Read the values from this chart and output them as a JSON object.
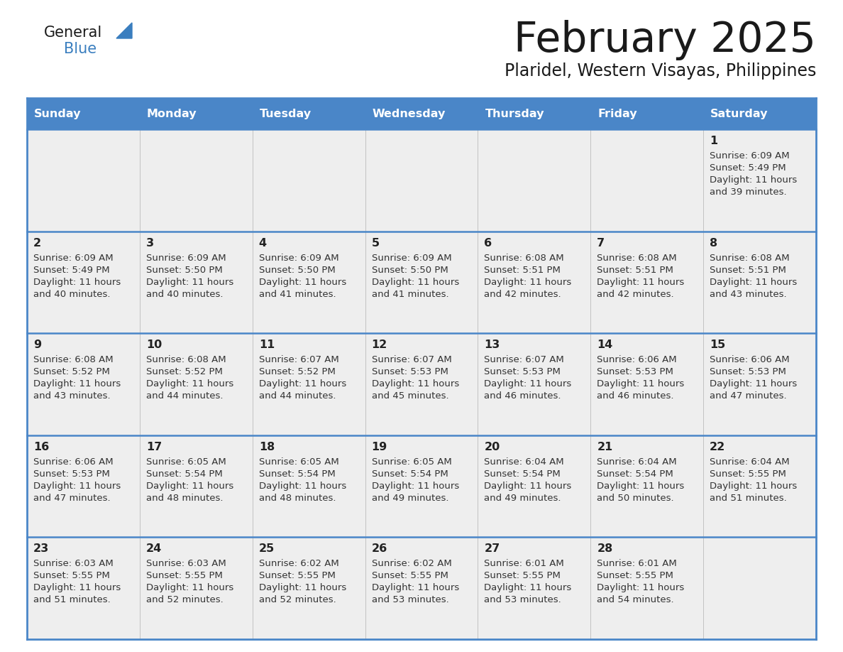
{
  "title": "February 2025",
  "subtitle": "Plaridel, Western Visayas, Philippines",
  "days_of_week": [
    "Sunday",
    "Monday",
    "Tuesday",
    "Wednesday",
    "Thursday",
    "Friday",
    "Saturday"
  ],
  "header_bg": "#4a86c8",
  "header_text": "#ffffff",
  "cell_bg": "#eeeeee",
  "border_color": "#4a86c8",
  "day_number_color": "#222222",
  "text_color": "#333333",
  "title_color": "#1a1a1a",
  "logo_general_color": "#1a1a1a",
  "logo_blue_color": "#3a7ebf",
  "calendar_data": [
    {
      "day": 1,
      "row": 0,
      "col": 6,
      "sunrise": "6:09 AM",
      "sunset": "5:49 PM",
      "daylight_mins": "39"
    },
    {
      "day": 2,
      "row": 1,
      "col": 0,
      "sunrise": "6:09 AM",
      "sunset": "5:49 PM",
      "daylight_mins": "40"
    },
    {
      "day": 3,
      "row": 1,
      "col": 1,
      "sunrise": "6:09 AM",
      "sunset": "5:50 PM",
      "daylight_mins": "40"
    },
    {
      "day": 4,
      "row": 1,
      "col": 2,
      "sunrise": "6:09 AM",
      "sunset": "5:50 PM",
      "daylight_mins": "41"
    },
    {
      "day": 5,
      "row": 1,
      "col": 3,
      "sunrise": "6:09 AM",
      "sunset": "5:50 PM",
      "daylight_mins": "41"
    },
    {
      "day": 6,
      "row": 1,
      "col": 4,
      "sunrise": "6:08 AM",
      "sunset": "5:51 PM",
      "daylight_mins": "42"
    },
    {
      "day": 7,
      "row": 1,
      "col": 5,
      "sunrise": "6:08 AM",
      "sunset": "5:51 PM",
      "daylight_mins": "42"
    },
    {
      "day": 8,
      "row": 1,
      "col": 6,
      "sunrise": "6:08 AM",
      "sunset": "5:51 PM",
      "daylight_mins": "43"
    },
    {
      "day": 9,
      "row": 2,
      "col": 0,
      "sunrise": "6:08 AM",
      "sunset": "5:52 PM",
      "daylight_mins": "43"
    },
    {
      "day": 10,
      "row": 2,
      "col": 1,
      "sunrise": "6:08 AM",
      "sunset": "5:52 PM",
      "daylight_mins": "44"
    },
    {
      "day": 11,
      "row": 2,
      "col": 2,
      "sunrise": "6:07 AM",
      "sunset": "5:52 PM",
      "daylight_mins": "44"
    },
    {
      "day": 12,
      "row": 2,
      "col": 3,
      "sunrise": "6:07 AM",
      "sunset": "5:53 PM",
      "daylight_mins": "45"
    },
    {
      "day": 13,
      "row": 2,
      "col": 4,
      "sunrise": "6:07 AM",
      "sunset": "5:53 PM",
      "daylight_mins": "46"
    },
    {
      "day": 14,
      "row": 2,
      "col": 5,
      "sunrise": "6:06 AM",
      "sunset": "5:53 PM",
      "daylight_mins": "46"
    },
    {
      "day": 15,
      "row": 2,
      "col": 6,
      "sunrise": "6:06 AM",
      "sunset": "5:53 PM",
      "daylight_mins": "47"
    },
    {
      "day": 16,
      "row": 3,
      "col": 0,
      "sunrise": "6:06 AM",
      "sunset": "5:53 PM",
      "daylight_mins": "47"
    },
    {
      "day": 17,
      "row": 3,
      "col": 1,
      "sunrise": "6:05 AM",
      "sunset": "5:54 PM",
      "daylight_mins": "48"
    },
    {
      "day": 18,
      "row": 3,
      "col": 2,
      "sunrise": "6:05 AM",
      "sunset": "5:54 PM",
      "daylight_mins": "48"
    },
    {
      "day": 19,
      "row": 3,
      "col": 3,
      "sunrise": "6:05 AM",
      "sunset": "5:54 PM",
      "daylight_mins": "49"
    },
    {
      "day": 20,
      "row": 3,
      "col": 4,
      "sunrise": "6:04 AM",
      "sunset": "5:54 PM",
      "daylight_mins": "49"
    },
    {
      "day": 21,
      "row": 3,
      "col": 5,
      "sunrise": "6:04 AM",
      "sunset": "5:54 PM",
      "daylight_mins": "50"
    },
    {
      "day": 22,
      "row": 3,
      "col": 6,
      "sunrise": "6:04 AM",
      "sunset": "5:55 PM",
      "daylight_mins": "51"
    },
    {
      "day": 23,
      "row": 4,
      "col": 0,
      "sunrise": "6:03 AM",
      "sunset": "5:55 PM",
      "daylight_mins": "51"
    },
    {
      "day": 24,
      "row": 4,
      "col": 1,
      "sunrise": "6:03 AM",
      "sunset": "5:55 PM",
      "daylight_mins": "52"
    },
    {
      "day": 25,
      "row": 4,
      "col": 2,
      "sunrise": "6:02 AM",
      "sunset": "5:55 PM",
      "daylight_mins": "52"
    },
    {
      "day": 26,
      "row": 4,
      "col": 3,
      "sunrise": "6:02 AM",
      "sunset": "5:55 PM",
      "daylight_mins": "53"
    },
    {
      "day": 27,
      "row": 4,
      "col": 4,
      "sunrise": "6:01 AM",
      "sunset": "5:55 PM",
      "daylight_mins": "53"
    },
    {
      "day": 28,
      "row": 4,
      "col": 5,
      "sunrise": "6:01 AM",
      "sunset": "5:55 PM",
      "daylight_mins": "54"
    }
  ]
}
